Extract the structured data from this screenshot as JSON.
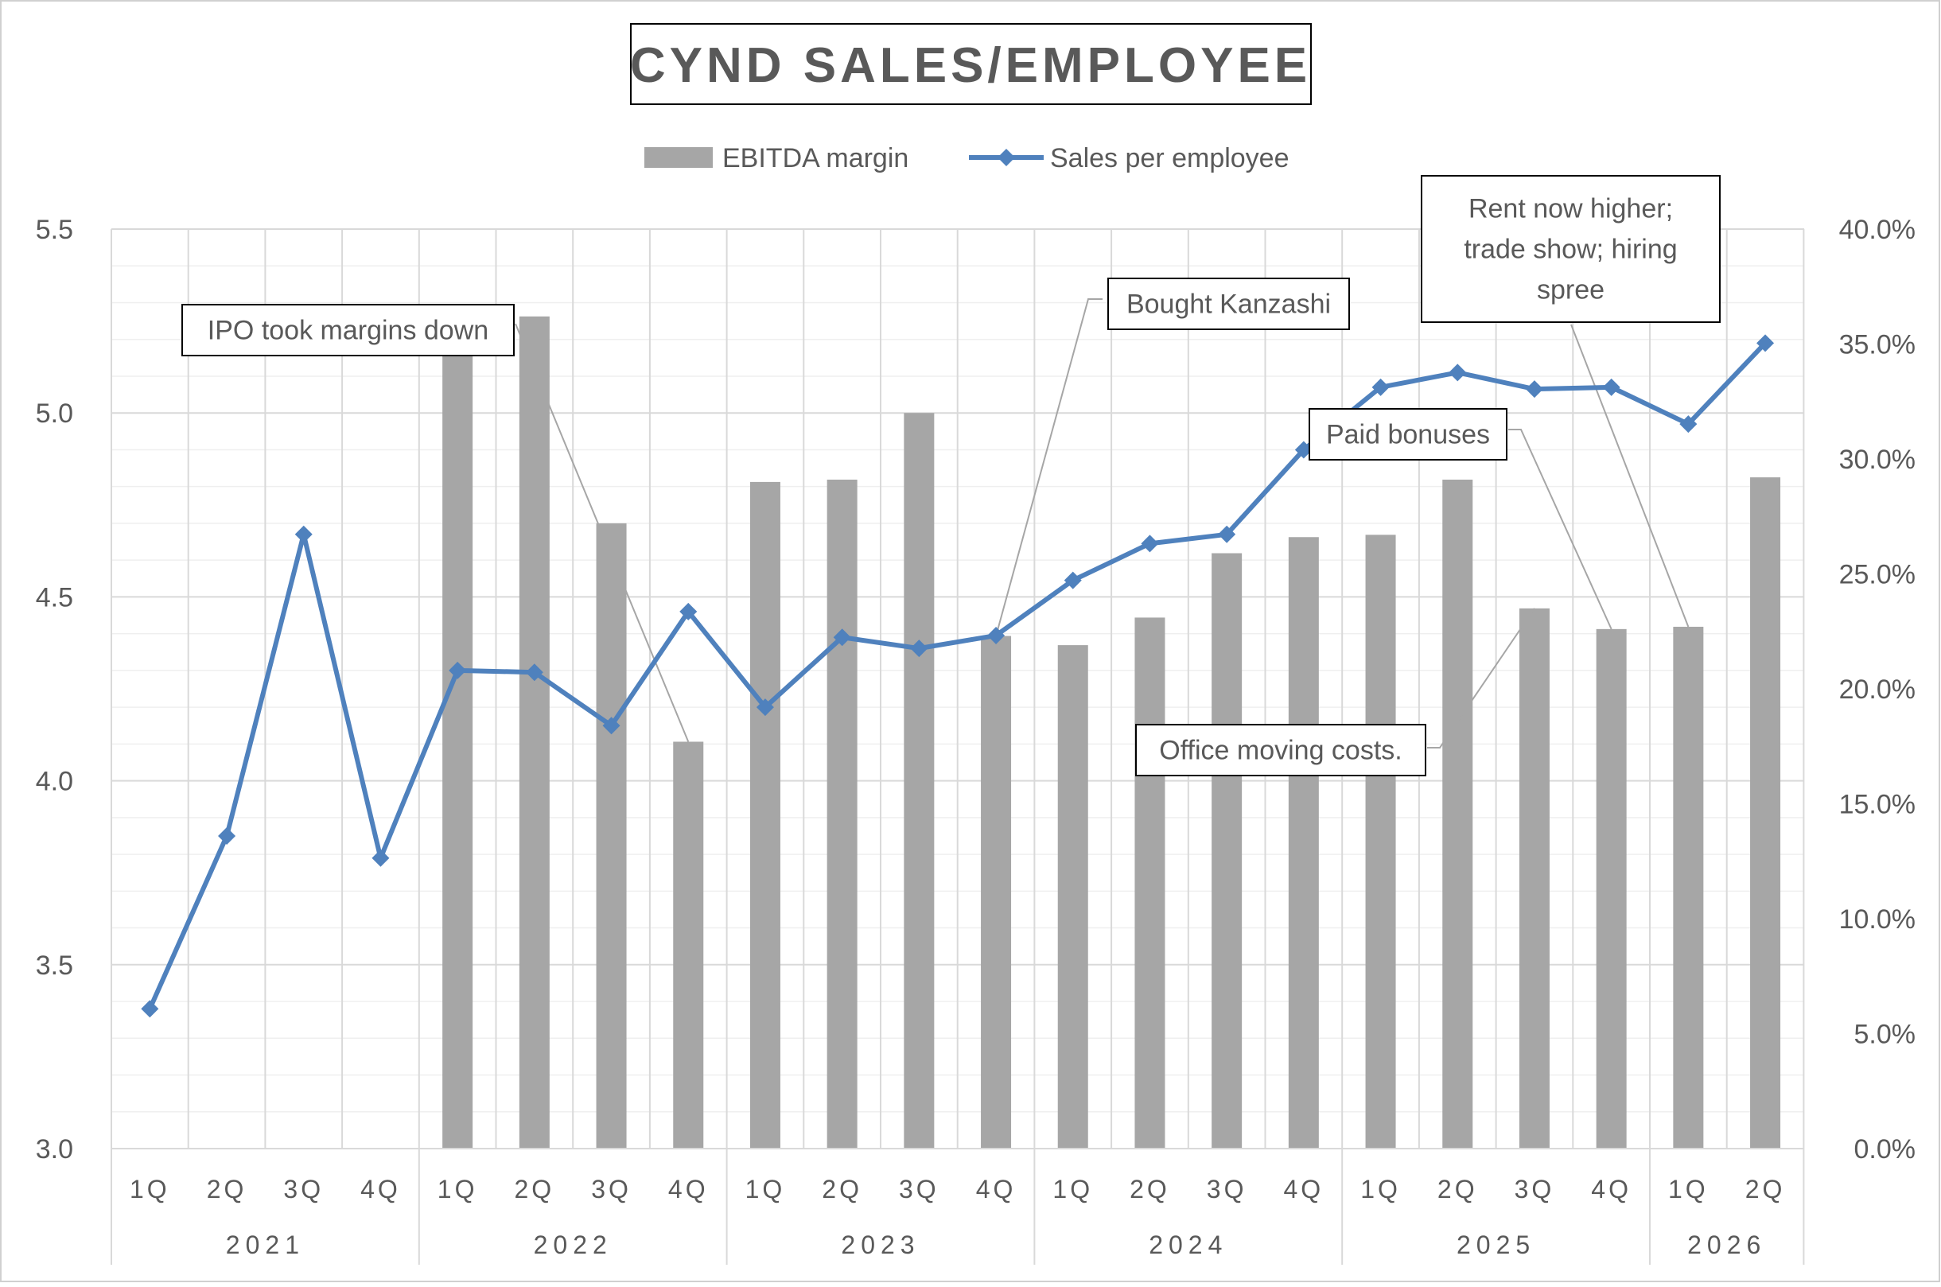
{
  "chart_data": {
    "type": "bar+line",
    "title": "CYND SALES/EMPLOYEE",
    "legend": {
      "position": "top",
      "entries": [
        {
          "label": "EBITDA margin",
          "kind": "bar",
          "color": "#a6a6a6"
        },
        {
          "label": "Sales per employee",
          "kind": "line",
          "color": "#4f81bd"
        }
      ]
    },
    "categories": {
      "quarters": [
        "1Q",
        "2Q",
        "3Q",
        "4Q",
        "1Q",
        "2Q",
        "3Q",
        "4Q",
        "1Q",
        "2Q",
        "3Q",
        "4Q",
        "1Q",
        "2Q",
        "3Q",
        "4Q",
        "1Q",
        "2Q",
        "3Q",
        "4Q",
        "1Q",
        "2Q"
      ],
      "years": [
        {
          "label": "2021",
          "count": 4
        },
        {
          "label": "2022",
          "count": 4
        },
        {
          "label": "2023",
          "count": 4
        },
        {
          "label": "2024",
          "count": 4
        },
        {
          "label": "2025",
          "count": 4
        },
        {
          "label": "2026",
          "count": 2
        }
      ]
    },
    "series": [
      {
        "name": "EBITDA margin",
        "axis": "right",
        "values": [
          null,
          null,
          null,
          null,
          34.8,
          36.2,
          27.2,
          17.7,
          29.0,
          29.1,
          32.0,
          22.3,
          21.9,
          23.1,
          25.9,
          26.6,
          26.7,
          29.1,
          23.5,
          22.6,
          22.7,
          29.2
        ]
      },
      {
        "name": "Sales per employee",
        "axis": "left",
        "values": [
          3.38,
          3.85,
          4.67,
          3.79,
          4.3,
          4.295,
          4.15,
          4.46,
          4.2,
          4.39,
          4.36,
          4.395,
          4.545,
          4.645,
          4.67,
          4.9,
          5.07,
          5.11,
          5.065,
          5.07,
          4.97,
          5.19
        ]
      }
    ],
    "y_left": {
      "min": 3.0,
      "max": 5.5,
      "ticks": [
        "3.0",
        "3.5",
        "4.0",
        "4.5",
        "5.0",
        "5.5"
      ]
    },
    "y_right": {
      "min": 0,
      "max": 40,
      "ticks": [
        "0.0%",
        "5.0%",
        "10.0%",
        "15.0%",
        "20.0%",
        "25.0%",
        "30.0%",
        "35.0%",
        "40.0%"
      ]
    },
    "grid": true,
    "annotations": [
      {
        "lines": [
          "IPO took margins down"
        ],
        "target_index": 7
      },
      {
        "lines": [
          "Bought Kanzashi"
        ],
        "target_index": 11
      },
      {
        "lines": [
          "Rent now higher;",
          "trade show; hiring",
          "spree"
        ],
        "target_index": 20
      },
      {
        "lines": [
          "Paid bonuses"
        ],
        "target_index": 19
      },
      {
        "lines": [
          "Office moving costs."
        ],
        "target_index": 18
      }
    ]
  }
}
